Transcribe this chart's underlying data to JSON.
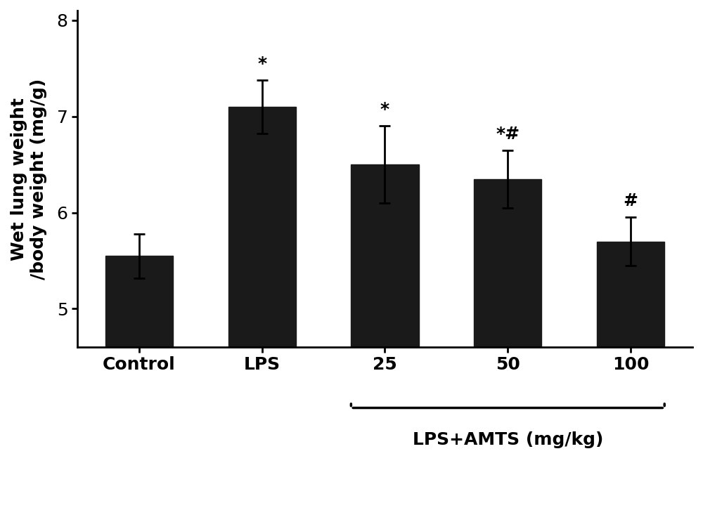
{
  "categories": [
    "Control",
    "LPS",
    "25",
    "50",
    "100"
  ],
  "values": [
    5.55,
    7.1,
    6.5,
    6.35,
    5.7
  ],
  "errors": [
    0.23,
    0.28,
    0.4,
    0.3,
    0.25
  ],
  "bar_color": "#1a1a1a",
  "bar_width": 0.55,
  "ylim": [
    4.6,
    8.1
  ],
  "yticks": [
    5,
    6,
    7,
    8
  ],
  "ylabel": "Wet lung weight\n/body weight (mg/g)",
  "bracket_label": "LPS+AMTS (mg/kg)",
  "bracket_bar_indices": [
    2,
    3,
    4
  ],
  "significance": [
    "",
    "*",
    "*",
    "*#",
    "#"
  ],
  "background_color": "#ffffff",
  "title_fontsize": 16,
  "label_fontsize": 18,
  "tick_fontsize": 18,
  "sig_fontsize": 18,
  "bracket_fontsize": 18
}
